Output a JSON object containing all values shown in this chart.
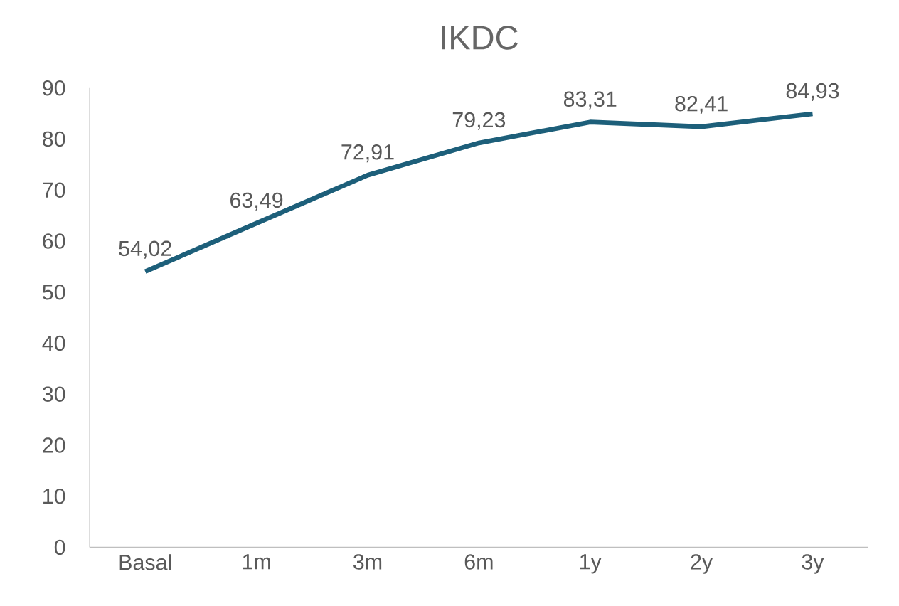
{
  "chart_data": {
    "type": "line",
    "title": "IKDC",
    "categories": [
      "Basal",
      "1m",
      "3m",
      "6m",
      "1y",
      "2y",
      "3y"
    ],
    "values": [
      54.02,
      63.49,
      72.91,
      79.23,
      83.31,
      82.41,
      84.93
    ],
    "value_labels": [
      "54,02",
      "63,49",
      "72,91",
      "79,23",
      "83,31",
      "82,41",
      "84,93"
    ],
    "color": "#1d5f7a",
    "ylim": [
      0,
      90
    ],
    "yticks": [
      0,
      10,
      20,
      30,
      40,
      50,
      60,
      70,
      80,
      90
    ],
    "grid": false,
    "marker": "none",
    "line_style": "solid"
  }
}
